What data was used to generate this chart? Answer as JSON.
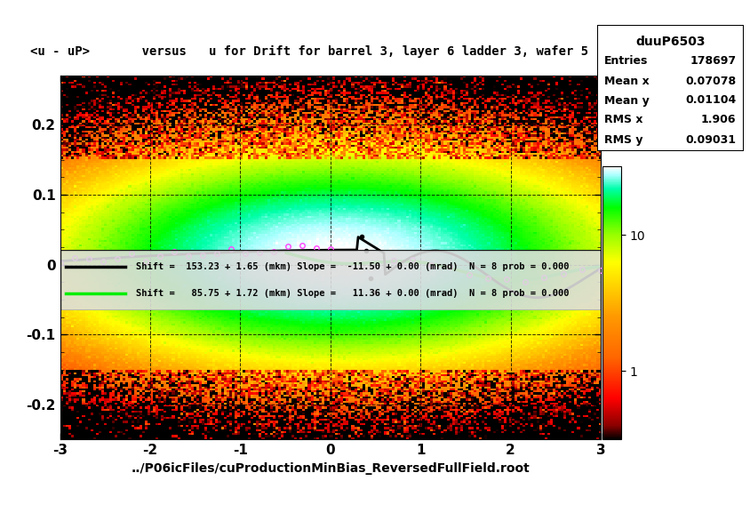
{
  "title": "<u - uP>       versus   u for Drift for barrel 3, layer 6 ladder 3, wafer 5",
  "xlabel": "../P06icFiles/cuProductionMinBias_ReversedFullField.root",
  "ylabel": "",
  "xlim": [
    -3,
    3
  ],
  "ylim": [
    -0.25,
    0.27
  ],
  "stats_title": "duuP6503",
  "stats_entries": "178697",
  "stats_mean_x": "0.07078",
  "stats_mean_y": "0.01104",
  "stats_rms_x": "1.906",
  "stats_rms_y": "0.09031",
  "legend_black_text": "Shift =  153.23 + 1.65 (mkm) Slope =  -11.50 + 0.00 (mrad)  N = 8 prob = 0.000",
  "legend_green_text": "Shift =   85.75 + 1.72 (mkm) Slope =   11.36 + 0.00 (mrad)  N = 8 prob = 0.000",
  "colorbar_ticks": [
    1,
    10
  ],
  "colorbar_tick_labels": [
    "1",
    "10"
  ],
  "background_color": "#ffffff",
  "plot_bg": "#00cc00"
}
